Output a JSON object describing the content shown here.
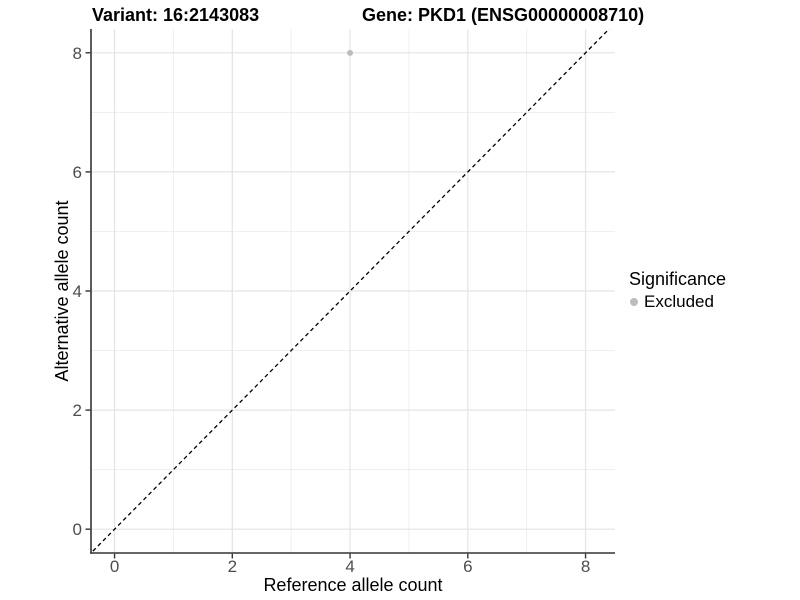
{
  "titles": {
    "variant": "Variant: 16:2143083",
    "gene": "Gene: PKD1 (ENSG00000008710)"
  },
  "axes": {
    "x_label": "Reference allele count",
    "y_label": "Alternative allele count"
  },
  "legend": {
    "title": "Significance",
    "items": [
      {
        "label": "Excluded",
        "color": "#bdbdbd"
      }
    ]
  },
  "chart_data": {
    "type": "scatter",
    "title": "Variant: 16:2143083   Gene: PKD1 (ENSG00000008710)",
    "xlabel": "Reference allele count",
    "ylabel": "Alternative allele count",
    "xlim": [
      -0.4,
      8.5
    ],
    "ylim": [
      -0.4,
      8.4
    ],
    "xticks": [
      0,
      2,
      4,
      6,
      8
    ],
    "yticks": [
      0,
      2,
      4,
      6,
      8
    ],
    "xticks_minor": [
      1,
      3,
      5,
      7
    ],
    "yticks_minor": [
      1,
      3,
      5,
      7
    ],
    "grid": true,
    "legend_position": "right",
    "series": [
      {
        "name": "Excluded",
        "color": "#bdbdbd",
        "points": [
          {
            "x": 4,
            "y": 8
          }
        ]
      }
    ],
    "reference_line": {
      "type": "identity",
      "slope": 1,
      "intercept": 0,
      "style": "dashed",
      "color": "#000000"
    },
    "colors": {
      "background": "#ffffff",
      "grid_major": "#e4e4e4",
      "grid_minor": "#ededed",
      "axis_line": "#333333",
      "tick_label": "#4d4d4d",
      "point": "#bdbdbd"
    }
  }
}
